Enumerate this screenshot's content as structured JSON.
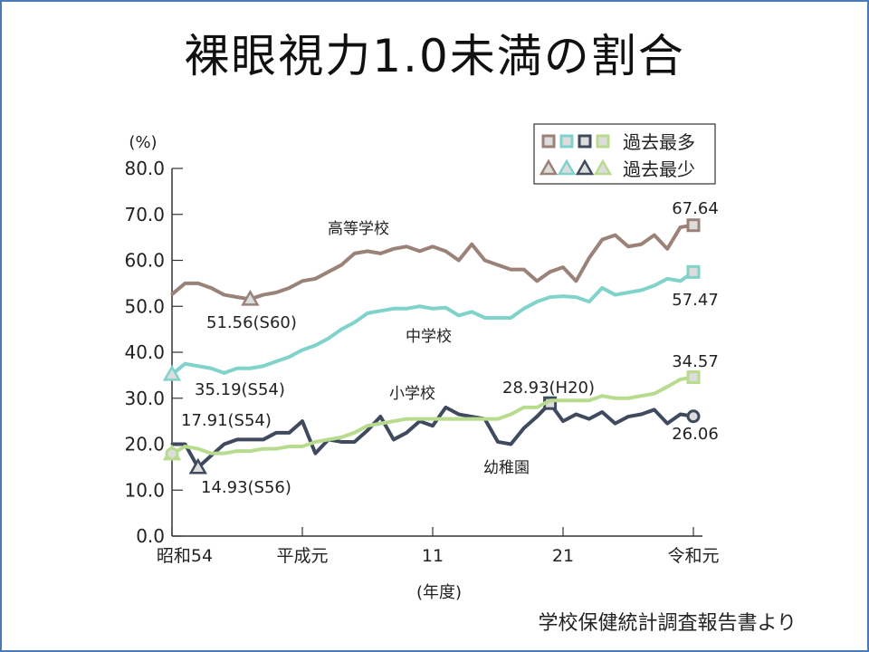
{
  "title": "裸眼視力1.0未満の割合",
  "source": "学校保健統計調査報告書より",
  "chart_data": {
    "type": "line",
    "title": "裸眼視力1.0未満の割合",
    "ylabel": "(%)",
    "xlabel": "(年度)",
    "ylim": [
      0,
      80
    ],
    "yticks": [
      "0.0",
      "10.0",
      "20.0",
      "30.0",
      "40.0",
      "50.0",
      "60.0",
      "70.0",
      "80.0"
    ],
    "x_start_year": 1979,
    "x_end_year": 2019,
    "xticks": [
      {
        "year": 1979,
        "label": "昭和54"
      },
      {
        "year": 1989,
        "label": "平成元"
      },
      {
        "year": 1999,
        "label": "11"
      },
      {
        "year": 2009,
        "label": "21"
      },
      {
        "year": 2019,
        "label": "令和元"
      }
    ],
    "legend": {
      "max_label": "過去最多",
      "min_label": "過去最少",
      "position": "top-right"
    },
    "series": [
      {
        "name": "高等学校",
        "color": "#9a8278",
        "values": [
          52.6,
          55,
          55,
          54,
          52.5,
          52,
          51.56,
          52.5,
          53,
          54,
          55.5,
          56,
          57.5,
          59,
          61.5,
          62,
          61.5,
          62.5,
          63,
          62,
          63,
          62,
          60,
          63.5,
          60,
          59,
          58,
          58,
          55.5,
          57.5,
          58.5,
          55.5,
          60.5,
          64.5,
          65.5,
          63,
          63.5,
          65.5,
          62.5,
          67.2,
          67.64
        ],
        "max": {
          "year": 2019,
          "label": "67.64"
        },
        "min": {
          "year": 1985,
          "label": "51.56(S60)"
        }
      },
      {
        "name": "中学校",
        "color": "#7fd3cb",
        "values": [
          35.19,
          37.5,
          37,
          36.5,
          35.5,
          36.5,
          36.5,
          37,
          38,
          39,
          40.5,
          41.5,
          43,
          45,
          46.5,
          48.5,
          49,
          49.5,
          49.5,
          50,
          49.5,
          49.7,
          48,
          48.8,
          47.5,
          47.5,
          47.5,
          49.5,
          51,
          52,
          52.2,
          52,
          51,
          54,
          52.5,
          53,
          53.5,
          54.5,
          56,
          55.5,
          57.47
        ],
        "max": {
          "year": 2019,
          "label": "57.47"
        },
        "min": {
          "year": 1979,
          "label": "35.19(S54)"
        }
      },
      {
        "name": "幼稚園",
        "color": "#3f4a5e",
        "values": [
          20,
          20,
          14.93,
          17.5,
          20,
          21,
          21,
          21,
          22.5,
          22.5,
          25,
          18,
          21,
          20.5,
          20.5,
          23,
          26,
          21,
          22.5,
          25,
          24,
          28,
          26.5,
          26,
          25.5,
          20.5,
          20,
          23.5,
          26,
          28.93,
          25,
          26.5,
          25.5,
          27,
          24.5,
          26,
          26.5,
          27.5,
          24.5,
          26.5,
          26.06
        ],
        "max": {
          "year": 2008,
          "label": "28.93(H20)"
        },
        "min": {
          "year": 1981,
          "label": "14.93(S56)"
        },
        "end": {
          "year": 2019,
          "label": "26.06"
        }
      },
      {
        "name": "小学校",
        "color": "#b8db8e",
        "values": [
          17.91,
          19.5,
          19,
          18,
          18,
          18.5,
          18.5,
          19,
          19,
          19.5,
          19.5,
          20.5,
          21,
          21.5,
          22.5,
          24,
          24.5,
          25,
          25.5,
          25.5,
          25.5,
          25.5,
          25.5,
          25.5,
          25.5,
          25.5,
          26.5,
          28,
          28,
          29.5,
          29.5,
          29.5,
          29.5,
          30.5,
          30,
          30,
          30.5,
          31,
          32.5,
          34.1,
          34.57
        ],
        "max": {
          "year": 2019,
          "label": "34.57"
        },
        "min": {
          "year": 1979,
          "label": "17.91(S54)"
        }
      }
    ]
  }
}
